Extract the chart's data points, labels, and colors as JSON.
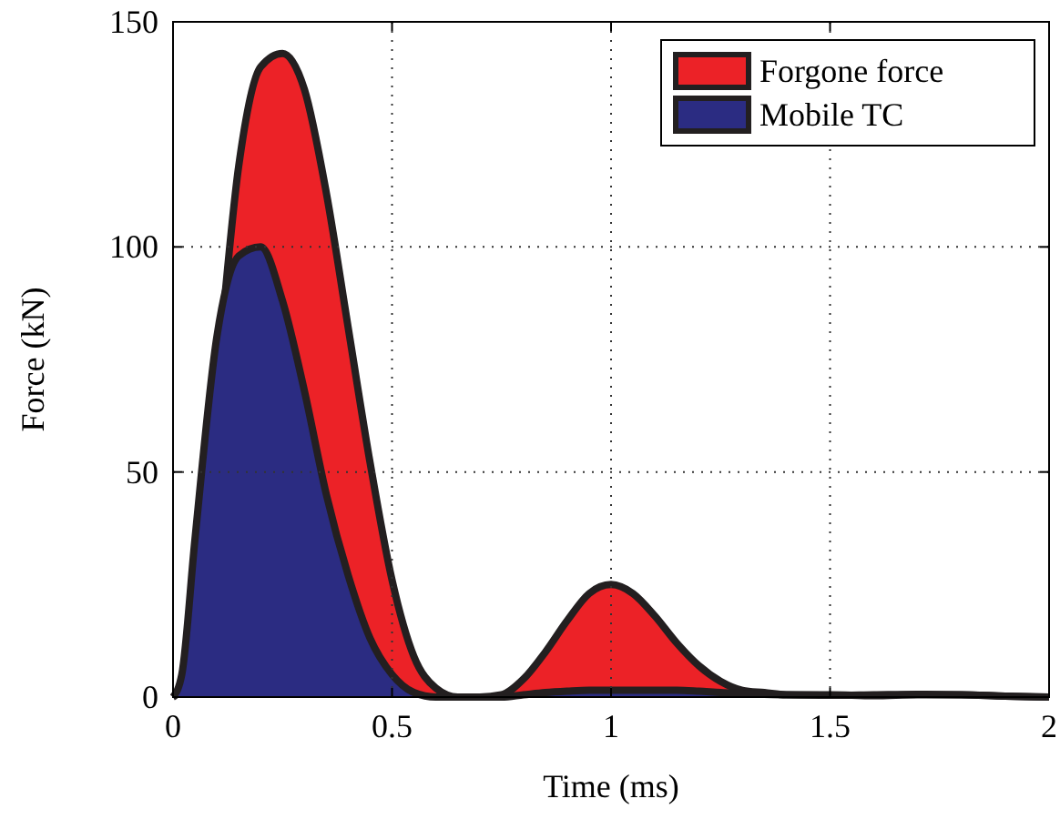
{
  "chart_data": {
    "type": "area",
    "xlabel": "Time (ms)",
    "ylabel": "Force (kN)",
    "x": [
      0,
      0.02,
      0.05,
      0.1,
      0.15,
      0.2,
      0.25,
      0.3,
      0.35,
      0.4,
      0.45,
      0.5,
      0.55,
      0.6,
      0.65,
      0.7,
      0.75,
      0.8,
      0.85,
      0.9,
      0.95,
      1.0,
      1.05,
      1.1,
      1.15,
      1.2,
      1.25,
      1.3,
      1.35,
      1.4,
      1.5,
      1.6,
      1.7,
      1.8,
      1.9,
      2.0
    ],
    "series": [
      {
        "name": "Forgone force",
        "color": "#ec2227",
        "values": [
          0,
          2,
          20,
          70,
          118,
          140,
          143,
          135,
          112,
          82,
          52,
          26,
          9,
          2,
          0,
          0,
          0.5,
          4,
          10,
          17,
          23,
          25,
          23,
          18,
          12,
          7,
          3.5,
          1.5,
          1,
          0.5,
          0.5,
          0.3,
          0.5,
          0.5,
          0.2,
          0
        ]
      },
      {
        "name": "Mobile TC",
        "color": "#2b2c82",
        "values": [
          0,
          5,
          35,
          80,
          98,
          100,
          88,
          68,
          45,
          27,
          13,
          5,
          1,
          0,
          0,
          0,
          0,
          0.5,
          1,
          1.3,
          1.5,
          1.5,
          1.5,
          1.5,
          1.5,
          1.3,
          1,
          0.8,
          0.6,
          0.5,
          0.4,
          0.5,
          0.6,
          0.5,
          0.2,
          0
        ]
      }
    ],
    "xlim": [
      0,
      2
    ],
    "xticks": [
      0,
      0.5,
      1,
      1.5,
      2
    ],
    "ylim": [
      0,
      150
    ],
    "yticks": [
      0,
      50,
      100,
      150
    ],
    "grid": true,
    "legend": "top right",
    "line_style": "solid"
  }
}
